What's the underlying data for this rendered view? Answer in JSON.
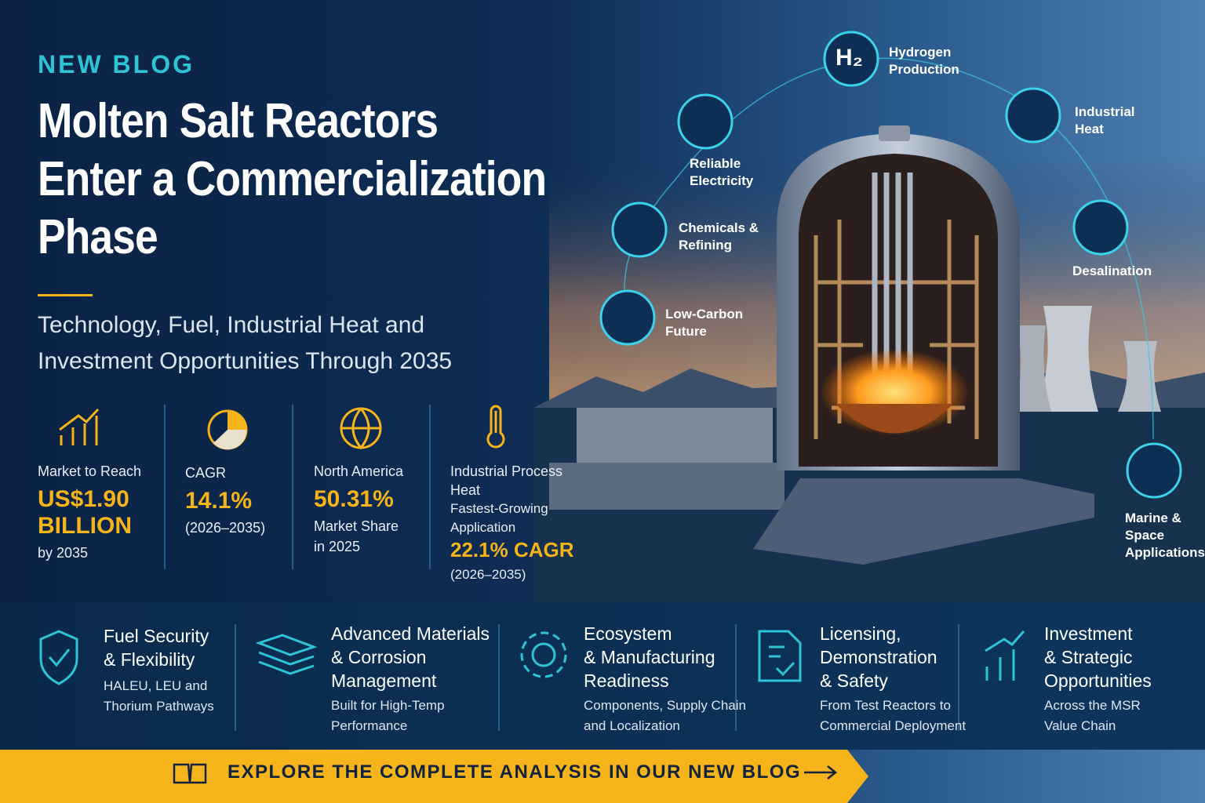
{
  "header": {
    "tag": "NEW BLOG",
    "title": [
      "Molten Salt Reactors",
      "Enter a Commercialization",
      "Phase"
    ],
    "subtitle": [
      "Technology, Fuel, Industrial Heat and",
      "Investment Opportunities Through 2035"
    ]
  },
  "stats": [
    {
      "label": [
        "Market to Reach"
      ],
      "value": [
        "US$1.90",
        "BILLION"
      ],
      "note": [
        "by 2035"
      ]
    },
    {
      "label": [
        "CAGR"
      ],
      "value": [
        "14.1%"
      ],
      "note": [
        "(2026–2035)"
      ]
    },
    {
      "label": [
        "North America"
      ],
      "value": [
        "50.31%"
      ],
      "note": [
        "Market Share",
        "in 2025"
      ]
    },
    {
      "label": [
        "Industrial Process",
        "Heat",
        "Fastest-Growing",
        "Application"
      ],
      "value": [
        "22.1% CAGR"
      ],
      "note": [
        "(2026–2035)"
      ]
    }
  ],
  "applications": [
    {
      "icon": "H₂",
      "label": [
        "Hydrogen",
        "Production"
      ]
    },
    {
      "label": [
        "Industrial",
        "Heat"
      ]
    },
    {
      "label": [
        "Desalination"
      ]
    },
    {
      "label": [
        "Marine &",
        "Space",
        "Applications"
      ]
    },
    {
      "label": [
        "Reliable",
        "Electricity"
      ]
    },
    {
      "label": [
        "Chemicals &",
        "Refining"
      ]
    },
    {
      "label": [
        "Low-Carbon",
        "Future"
      ]
    }
  ],
  "features": [
    {
      "title": [
        "Fuel Security",
        "& Flexibility"
      ],
      "text": [
        "HALEU, LEU and",
        "Thorium Pathways"
      ]
    },
    {
      "title": [
        "Advanced Materials",
        "& Corrosion",
        "Management"
      ],
      "text": [
        "Built for High-Temp",
        "Performance"
      ]
    },
    {
      "title": [
        "Ecosystem",
        "& Manufacturing",
        "Readiness"
      ],
      "text": [
        "Components, Supply Chain",
        "and Localization"
      ]
    },
    {
      "title": [
        "Licensing,",
        "Demonstration",
        "& Safety"
      ],
      "text": [
        "From Test Reactors to",
        "Commercial Deployment"
      ]
    },
    {
      "title": [
        "Investment",
        "& Strategic",
        "Opportunities"
      ],
      "text": [
        "Across the MSR",
        "Value Chain"
      ]
    }
  ],
  "cta": {
    "text": "EXPLORE THE COMPLETE ANALYSIS IN OUR NEW BLOG"
  }
}
